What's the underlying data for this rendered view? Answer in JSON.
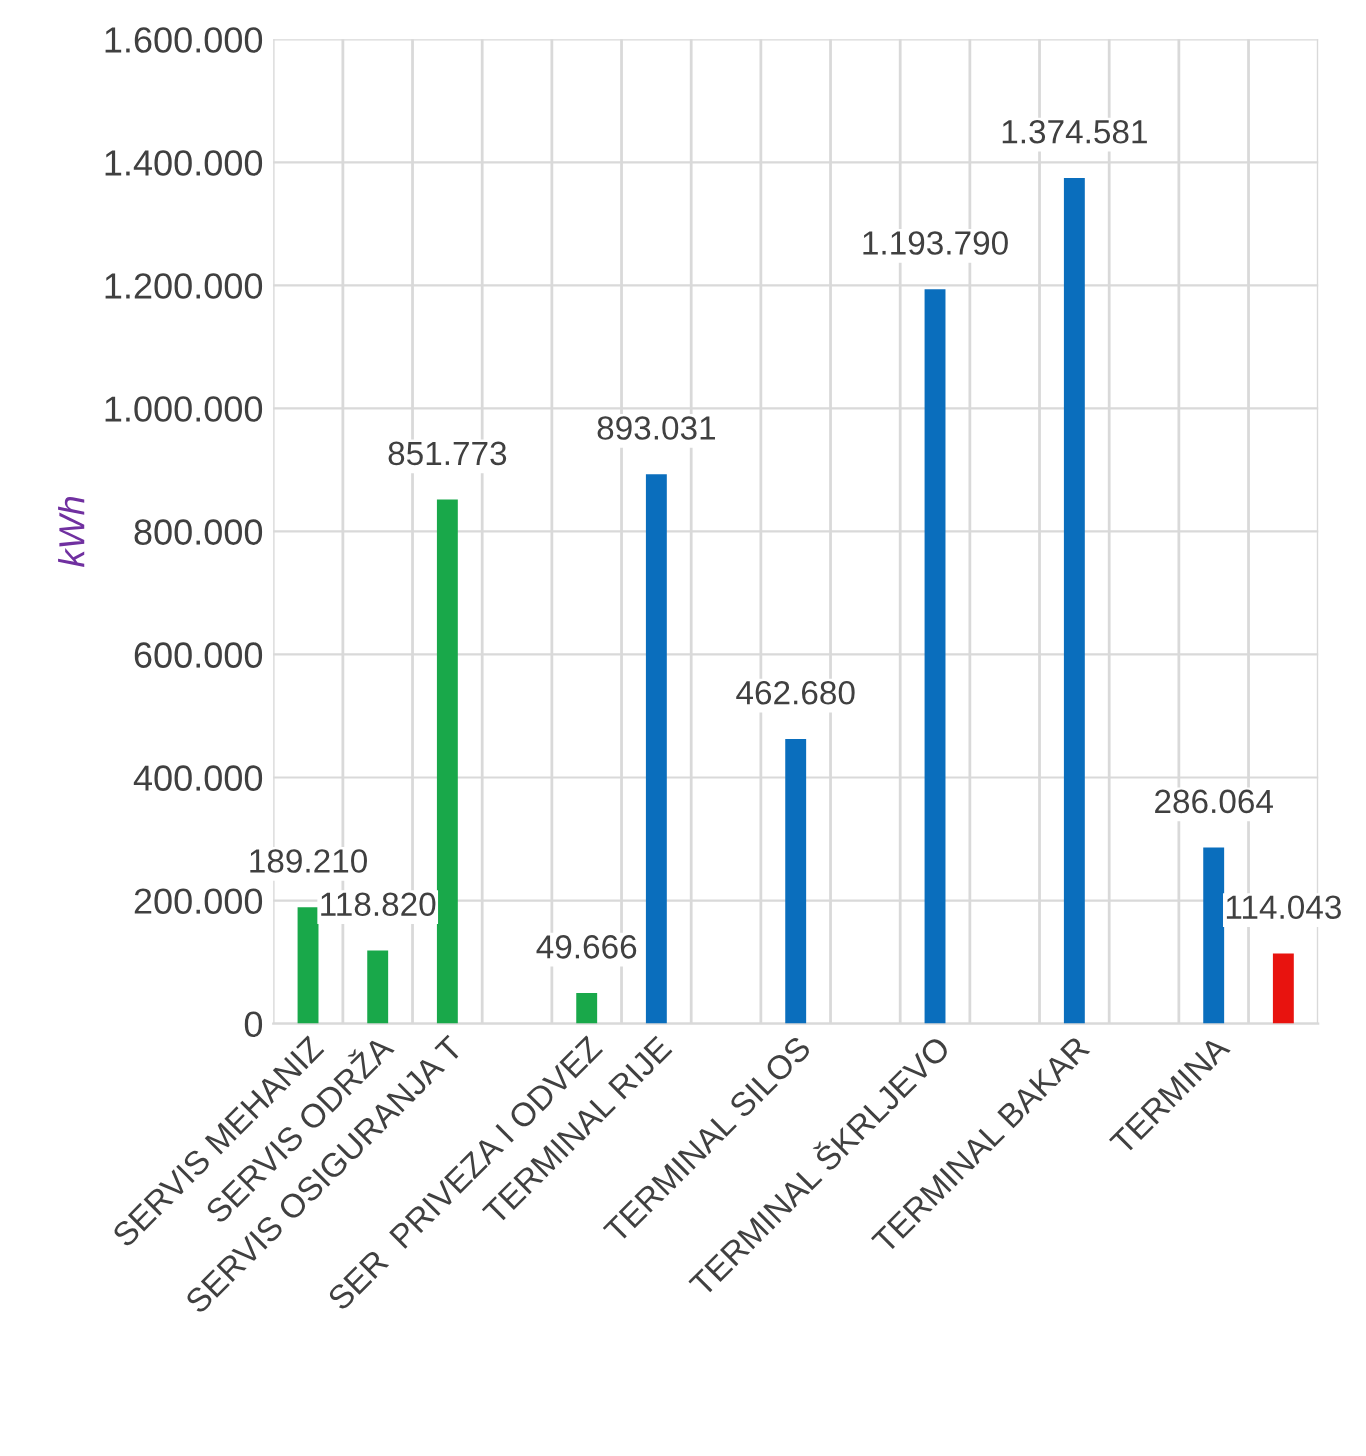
{
  "chart_data": {
    "type": "bar",
    "ylabel": "kWh",
    "categories": [
      "SERVIS MEHANIZ",
      "SERVIS ODRŽA",
      "SERVIS OSIGURANJA T",
      null,
      "SER  PRIVEZA I ODVEZ",
      "TERMINAL RIJE",
      null,
      "TERMINAL SILOS",
      null,
      "TERMINAL ŠKRLJEVO",
      null,
      "TERMINAL BAKAR",
      null,
      "TERMINA",
      null
    ],
    "values": [
      189210,
      118820,
      851773,
      null,
      49666,
      893031,
      null,
      462680,
      null,
      1193790,
      null,
      1374581,
      null,
      286064,
      114043
    ],
    "colors": [
      "#19a84a",
      "#19a84a",
      "#19a84a",
      null,
      "#19a84a",
      "#0a6ebd",
      null,
      "#0a6ebd",
      null,
      "#0a6ebd",
      null,
      "#0a6ebd",
      null,
      "#0a6ebd",
      "#e8130f"
    ],
    "value_labels": [
      "189.210",
      "118.820",
      "851.773",
      null,
      "49.666",
      "893.031",
      null,
      "462.680",
      null,
      "1.193.790",
      null,
      "1.374.581",
      null,
      "286.064",
      "114.043"
    ],
    "ylim": [
      0,
      1600000
    ],
    "yticks": [
      {
        "value": 0,
        "label": "0"
      },
      {
        "value": 200000,
        "label": "200.000"
      },
      {
        "value": 400000,
        "label": "400.000"
      },
      {
        "value": 600000,
        "label": "600.000"
      },
      {
        "value": 800000,
        "label": "800.000"
      },
      {
        "value": 1000000,
        "label": "1.000.000"
      },
      {
        "value": 1200000,
        "label": "1.200.000"
      },
      {
        "value": 1400000,
        "label": "1.400.000"
      },
      {
        "value": 1600000,
        "label": "1.600.000"
      }
    ],
    "grid": true
  }
}
